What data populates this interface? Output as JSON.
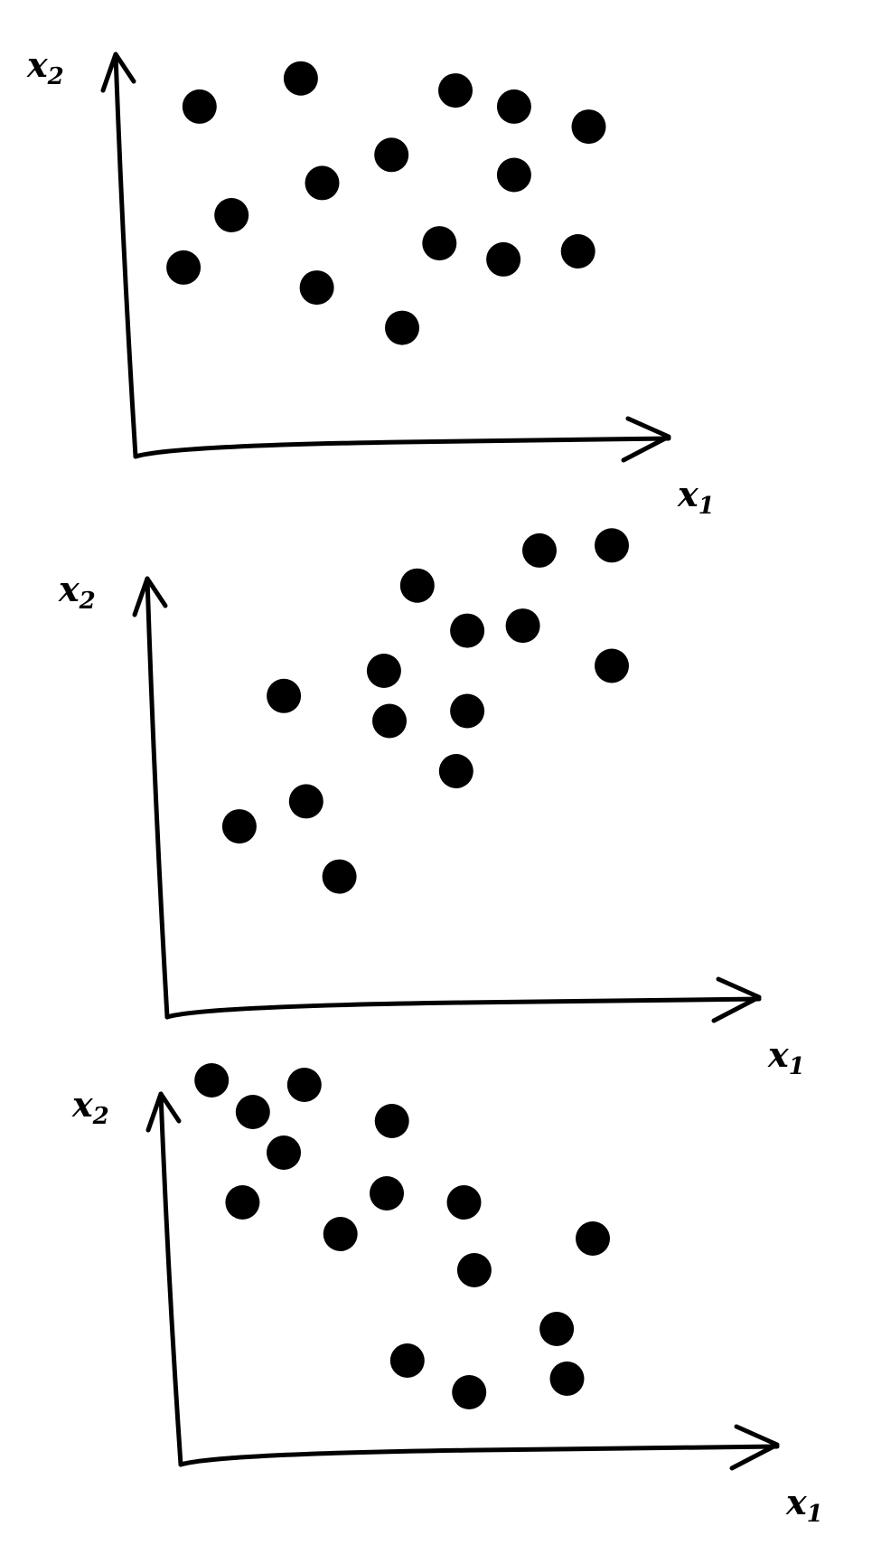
{
  "chart_data": [
    {
      "type": "scatter",
      "xlabel": "x1",
      "ylabel": "x2",
      "grid": false,
      "xlim": [
        0,
        10
      ],
      "ylim": [
        0,
        10
      ],
      "points": [
        {
          "x": 1.2,
          "y": 8.7
        },
        {
          "x": 3.1,
          "y": 9.4
        },
        {
          "x": 6.0,
          "y": 9.1
        },
        {
          "x": 7.1,
          "y": 8.7
        },
        {
          "x": 8.5,
          "y": 8.2
        },
        {
          "x": 1.8,
          "y": 6.0
        },
        {
          "x": 3.5,
          "y": 6.8
        },
        {
          "x": 4.8,
          "y": 7.5
        },
        {
          "x": 7.1,
          "y": 7.0
        },
        {
          "x": 0.9,
          "y": 4.7
        },
        {
          "x": 3.4,
          "y": 4.2
        },
        {
          "x": 5.7,
          "y": 5.3
        },
        {
          "x": 6.9,
          "y": 4.9
        },
        {
          "x": 8.3,
          "y": 5.1
        },
        {
          "x": 5.0,
          "y": 3.2
        }
      ]
    },
    {
      "type": "scatter",
      "xlabel": "x1",
      "ylabel": "x2",
      "grid": false,
      "xlim": [
        0,
        10
      ],
      "ylim": [
        0,
        10
      ],
      "points": [
        {
          "x": 6.7,
          "y": 9.3
        },
        {
          "x": 8.0,
          "y": 9.4
        },
        {
          "x": 4.5,
          "y": 8.6
        },
        {
          "x": 5.4,
          "y": 7.7
        },
        {
          "x": 6.4,
          "y": 7.8
        },
        {
          "x": 8.0,
          "y": 7.0
        },
        {
          "x": 3.9,
          "y": 6.9
        },
        {
          "x": 2.1,
          "y": 6.4
        },
        {
          "x": 4.0,
          "y": 5.9
        },
        {
          "x": 5.4,
          "y": 6.1
        },
        {
          "x": 5.2,
          "y": 4.9
        },
        {
          "x": 2.5,
          "y": 4.3
        },
        {
          "x": 1.3,
          "y": 3.8
        },
        {
          "x": 3.1,
          "y": 2.8
        }
      ]
    },
    {
      "type": "scatter",
      "xlabel": "x1",
      "ylabel": "x2",
      "grid": false,
      "xlim": [
        0,
        10
      ],
      "ylim": [
        0,
        10
      ],
      "points": [
        {
          "x": 0.6,
          "y": 8.5
        },
        {
          "x": 1.4,
          "y": 7.8
        },
        {
          "x": 2.4,
          "y": 8.4
        },
        {
          "x": 2.0,
          "y": 6.9
        },
        {
          "x": 4.1,
          "y": 7.6
        },
        {
          "x": 1.2,
          "y": 5.8
        },
        {
          "x": 3.1,
          "y": 5.1
        },
        {
          "x": 4.0,
          "y": 6.0
        },
        {
          "x": 5.5,
          "y": 5.8
        },
        {
          "x": 5.7,
          "y": 4.3
        },
        {
          "x": 8.0,
          "y": 5.0
        },
        {
          "x": 7.3,
          "y": 3.0
        },
        {
          "x": 4.4,
          "y": 2.3
        },
        {
          "x": 5.6,
          "y": 1.6
        },
        {
          "x": 7.5,
          "y": 1.9
        }
      ]
    }
  ]
}
